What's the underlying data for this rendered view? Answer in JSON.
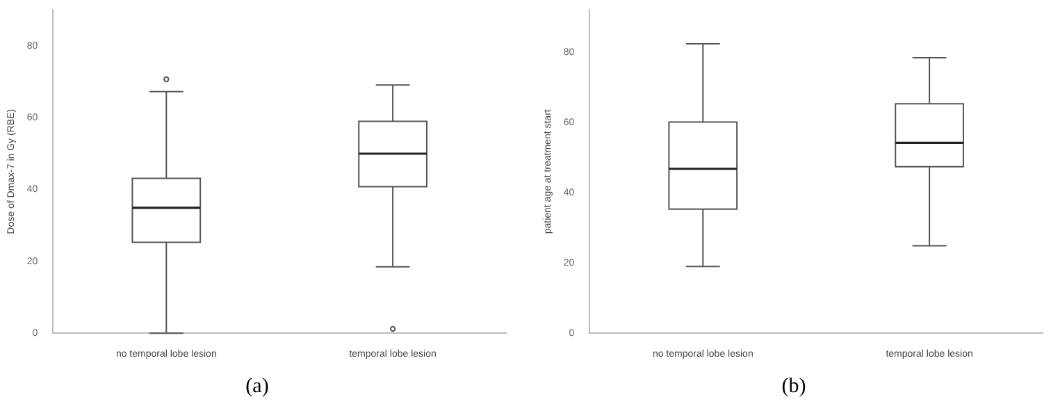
{
  "chart_data": [
    {
      "type": "box",
      "ylabel": "Dose of Dmax-7 in Gy (RBE)",
      "categories": [
        "no temporal lobe lesion",
        "temporal lobe lesion"
      ],
      "ylim": [
        0,
        90
      ],
      "yticks": [
        0,
        20,
        40,
        60,
        80
      ],
      "grid": false,
      "annotations": [
        "(a)"
      ],
      "boxes": [
        {
          "low": 0,
          "q1": 25.3,
          "median": 34.9,
          "q3": 43.1,
          "high": 67.3,
          "outliers": [
            70.7
          ]
        },
        {
          "low": 18.5,
          "q1": 40.8,
          "median": 50,
          "q3": 59,
          "high": 69.1,
          "outliers": [
            1.2
          ]
        }
      ]
    },
    {
      "type": "box",
      "ylabel": "patient age at treatment start",
      "categories": [
        "no temporal lobe lesion",
        "temporal lobe lesion"
      ],
      "ylim": [
        0,
        92
      ],
      "yticks": [
        0,
        20,
        40,
        60,
        80
      ],
      "grid": false,
      "annotations": [
        "(b)"
      ],
      "boxes": [
        {
          "low": 19,
          "q1": 35.3,
          "median": 46.8,
          "q3": 60.1,
          "high": 82.4
        },
        {
          "low": 24.9,
          "q1": 47.4,
          "median": 54.2,
          "q3": 65.3,
          "high": 78.4
        }
      ]
    }
  ]
}
